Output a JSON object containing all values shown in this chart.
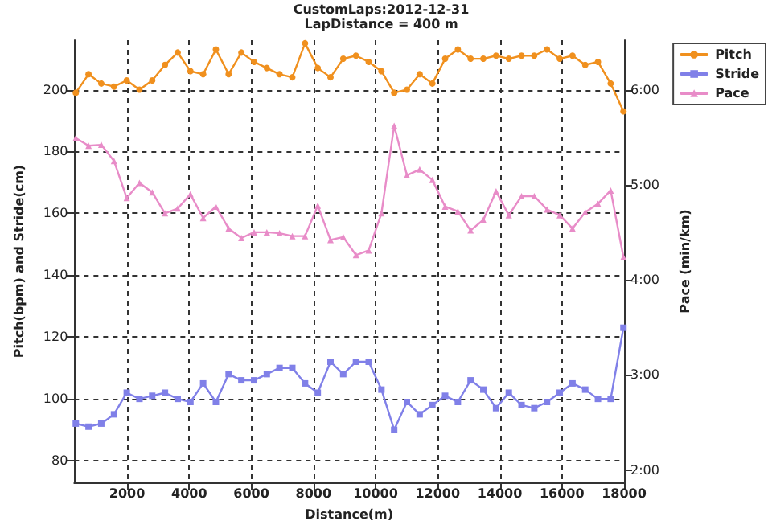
{
  "chart_data": {
    "type": "line",
    "title": "CustomLaps:2012-12-31",
    "subtitle": "LapDistance = 400 m",
    "xlabel": "Distance(m)",
    "ylabel": "Pitch(bpm) and Stride(cm)",
    "y2label": "Pace (min/km)",
    "x": [
      350,
      760,
      1170,
      1580,
      1990,
      2400,
      2810,
      3220,
      3630,
      4040,
      4450,
      4860,
      5270,
      5680,
      6090,
      6500,
      6910,
      7320,
      7730,
      8140,
      8550,
      8960,
      9370,
      9780,
      10190,
      10600,
      11010,
      11420,
      11830,
      12240,
      12650,
      13060,
      13470,
      13880,
      14290,
      14700,
      15110,
      15520,
      15930,
      16340,
      16750,
      17160,
      17570,
      17980
    ],
    "xlim": [
      300,
      18000
    ],
    "xticks": [
      2000,
      4000,
      6000,
      8000,
      10000,
      12000,
      14000,
      16000,
      18000
    ],
    "ylim": [
      73,
      216
    ],
    "yticks": [
      80,
      100,
      120,
      140,
      160,
      180,
      200
    ],
    "y2lim": [
      1.87,
      6.52
    ],
    "y2ticks": [
      {
        "value": 2,
        "label": "2:00"
      },
      {
        "value": 3,
        "label": "3:00"
      },
      {
        "value": 4,
        "label": "4:00"
      },
      {
        "value": 5,
        "label": "5:00"
      },
      {
        "value": 6,
        "label": "6:00"
      }
    ],
    "grid": true,
    "legend": "top right",
    "line_style": "solid",
    "series": [
      {
        "name": "Pitch",
        "color": "#f0901e",
        "marker": "circle",
        "values": [
          199,
          205,
          202,
          201,
          203,
          200,
          203,
          208,
          212,
          206,
          205,
          213,
          205,
          212,
          209,
          207,
          205,
          204,
          215,
          207,
          204,
          210,
          211,
          209,
          206,
          199,
          200,
          205,
          202,
          210,
          213,
          210,
          210,
          211,
          210,
          211,
          211,
          213,
          210,
          211,
          208,
          209,
          202,
          193
        ]
      },
      {
        "name": "Stride",
        "color": "#8080e8",
        "marker": "square",
        "values": [
          92,
          91,
          92,
          95,
          102,
          100,
          101,
          102,
          100,
          99,
          105,
          99,
          108,
          106,
          106,
          108,
          110,
          110,
          105,
          102,
          112,
          108,
          112,
          112,
          103,
          90,
          99,
          95,
          98,
          101,
          99,
          106,
          103,
          97,
          102,
          98,
          97,
          99,
          102,
          105,
          103,
          100,
          100,
          123
        ]
      },
      {
        "name": "Pace",
        "color": "#e88cc8",
        "marker": "triangle",
        "axis": "y2",
        "values": [
          5.49,
          5.41,
          5.42,
          5.25,
          4.86,
          5.02,
          4.92,
          4.7,
          4.75,
          4.9,
          4.65,
          4.77,
          4.54,
          4.44,
          4.5,
          4.5,
          4.49,
          4.46,
          4.46,
          4.78,
          4.42,
          4.45,
          4.26,
          4.31,
          4.7,
          5.62,
          5.1,
          5.16,
          5.05,
          4.77,
          4.72,
          4.52,
          4.63,
          4.93,
          4.68,
          4.88,
          4.88,
          4.74,
          4.68,
          4.54,
          4.71,
          4.8,
          4.94,
          4.24
        ]
      }
    ]
  }
}
